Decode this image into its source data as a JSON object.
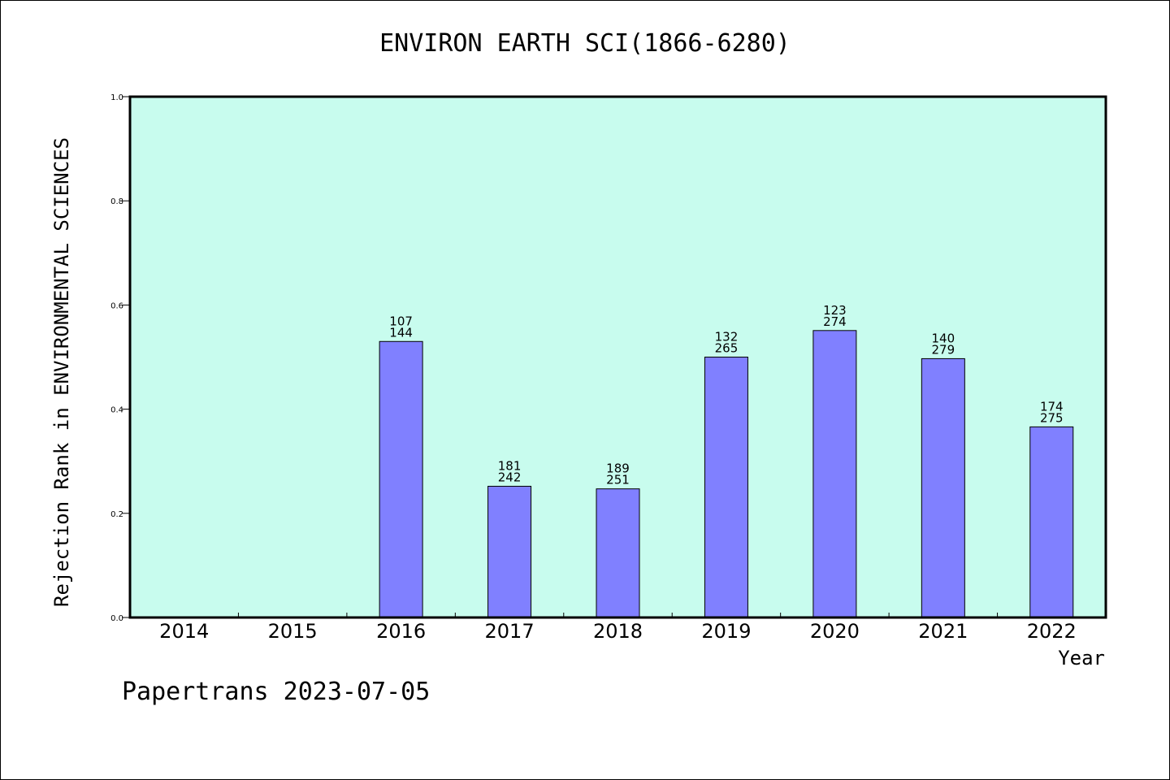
{
  "chart_data": {
    "type": "bar",
    "title": "ENVIRON EARTH SCI(1866-6280)",
    "xlabel": "Year",
    "ylabel": "Rejection Rank in ENVIRONMENTAL SCIENCES",
    "categories": [
      "2014",
      "2015",
      "2016",
      "2017",
      "2018",
      "2019",
      "2020",
      "2021",
      "2022"
    ],
    "values": [
      null,
      null,
      0.53,
      0.252,
      0.247,
      0.5,
      0.551,
      0.497,
      0.366
    ],
    "labels_top": [
      "",
      "",
      "107",
      "181",
      "189",
      "132",
      "123",
      "140",
      "174"
    ],
    "labels_bottom": [
      "",
      "",
      "144",
      "242",
      "251",
      "265",
      "274",
      "279",
      "275"
    ],
    "ylim": [
      0,
      1.0
    ],
    "yticks": [
      "0.0",
      "0.2",
      "0.4",
      "0.6",
      "0.8",
      "1.0"
    ],
    "grid": false,
    "colors": {
      "plot_bg": "#c8fcee",
      "bar": "#8080ff",
      "bar_edge": "#000000"
    }
  },
  "footer": "Papertrans 2023-07-05"
}
